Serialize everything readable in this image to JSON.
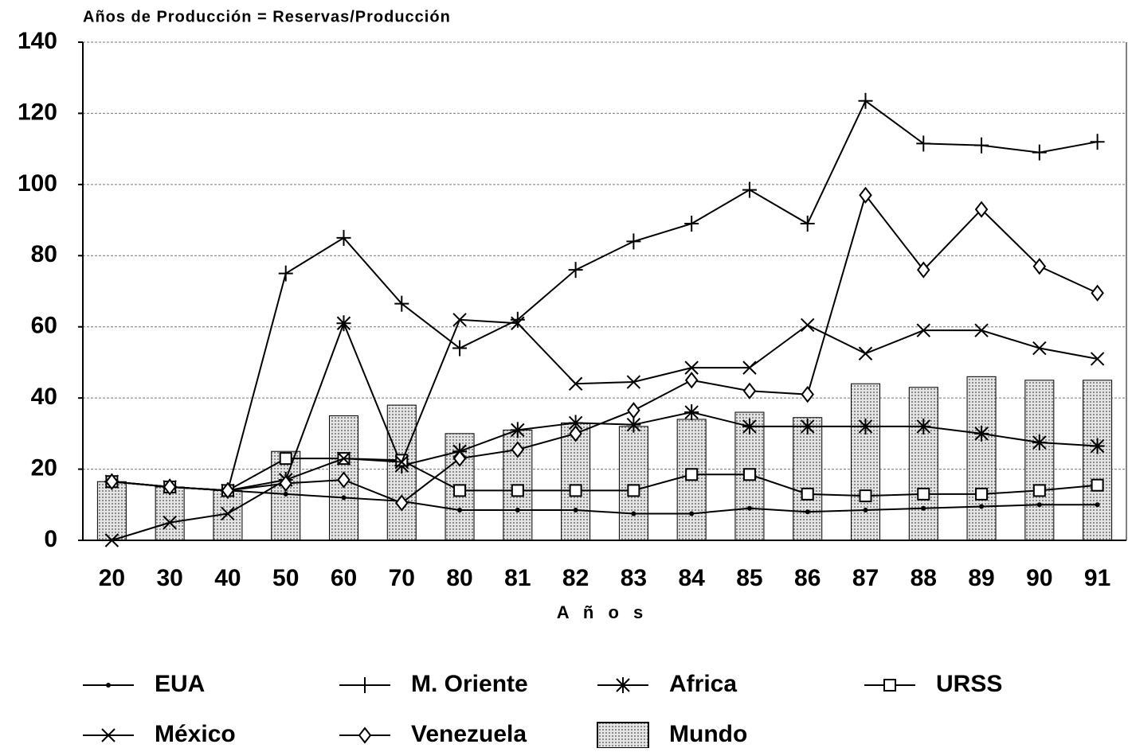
{
  "chart_data": {
    "type": "line",
    "title": "Años de Producción = Reservas/Producción",
    "x_label": "A ñ o s",
    "categories": [
      "20",
      "30",
      "40",
      "50",
      "60",
      "70",
      "80",
      "81",
      "82",
      "83",
      "84",
      "85",
      "86",
      "87",
      "88",
      "89",
      "90",
      "91"
    ],
    "ylim": [
      0,
      140
    ],
    "yticks": [
      0,
      20,
      40,
      60,
      80,
      100,
      120,
      140
    ],
    "grid": true,
    "series": [
      {
        "name": "EUA",
        "kind": "line",
        "marker": "dot",
        "color": "#000000",
        "values": [
          16.5,
          15,
          14,
          13,
          12,
          11,
          8.5,
          8.5,
          8.5,
          7.5,
          7.5,
          9,
          8,
          8.5,
          9,
          9.5,
          10,
          10
        ]
      },
      {
        "name": "M. Oriente",
        "kind": "line",
        "marker": "plus",
        "color": "#000000",
        "values": [
          16.5,
          15,
          14,
          75,
          85,
          66.5,
          54,
          62,
          76,
          84,
          89,
          98.5,
          89,
          123.5,
          111.5,
          111,
          109,
          112
        ]
      },
      {
        "name": "Africa",
        "kind": "line",
        "marker": "star",
        "color": "#000000",
        "values": [
          16.5,
          15,
          14,
          17,
          61,
          21,
          25,
          31,
          33,
          32.5,
          36,
          32,
          32,
          32,
          32,
          30,
          27.5,
          26.5
        ]
      },
      {
        "name": "URSS",
        "kind": "line",
        "marker": "square",
        "color": "#000000",
        "values": [
          16.5,
          15,
          14,
          23,
          23,
          22.5,
          14,
          14,
          14,
          14,
          18.5,
          18.5,
          13,
          12.5,
          13,
          13,
          14,
          15.5
        ]
      },
      {
        "name": "México",
        "kind": "line",
        "marker": "x",
        "color": "#000000",
        "values": [
          0,
          5,
          7.5,
          17,
          23,
          22,
          62,
          61,
          44,
          44.5,
          48.5,
          48.5,
          60.5,
          52.5,
          59,
          59,
          54,
          51
        ]
      },
      {
        "name": "Venezuela",
        "kind": "line",
        "marker": "diamond",
        "color": "#000000",
        "values": [
          16.5,
          15,
          14,
          16,
          17,
          10.5,
          23,
          25.5,
          30,
          36.5,
          45,
          42,
          41,
          97,
          76,
          93,
          77,
          69.5
        ]
      },
      {
        "name": "Mundo",
        "kind": "bar",
        "color": "#c8c8c8",
        "values": [
          16.5,
          15,
          14,
          25,
          35,
          38,
          30,
          31,
          33,
          32,
          34,
          36,
          34.5,
          44,
          43,
          46,
          45,
          45
        ]
      }
    ]
  }
}
